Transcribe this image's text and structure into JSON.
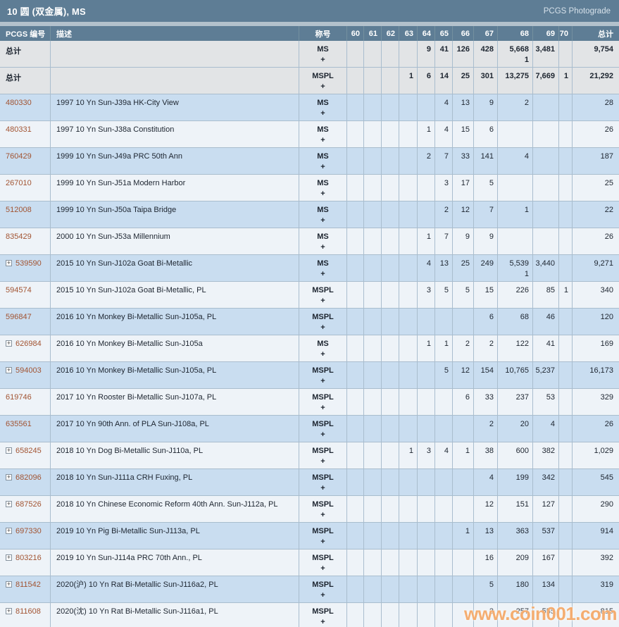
{
  "title_bar": {
    "title": "10 圆 (双金属), MS",
    "photograde_link": "PCGS Photograde"
  },
  "table": {
    "columns": [
      "PCGS 编号",
      "描述",
      "称号",
      "60",
      "61",
      "62",
      "63",
      "64",
      "65",
      "66",
      "67",
      "68",
      "69",
      "70",
      "总计"
    ],
    "grade_labels": [
      "60",
      "61",
      "62",
      "63",
      "64",
      "65",
      "66",
      "67",
      "68",
      "69",
      "70"
    ],
    "rows": [
      {
        "kind": "total",
        "id": "总计",
        "expand": false,
        "desc": "",
        "designation": "MS",
        "plus": "+",
        "counts": [
          "",
          "",
          "",
          "",
          "9",
          "41",
          "126",
          "428",
          "5,668",
          "3,481",
          ""
        ],
        "plus_counts": [
          "",
          "",
          "",
          "",
          "",
          "",
          "",
          "",
          "1",
          "",
          ""
        ],
        "total": "9,754"
      },
      {
        "kind": "total",
        "id": "总计",
        "expand": false,
        "desc": "",
        "designation": "MSPL",
        "plus": "+",
        "counts": [
          "",
          "",
          "",
          "1",
          "6",
          "14",
          "25",
          "301",
          "13,275",
          "7,669",
          "1"
        ],
        "plus_counts": [
          "",
          "",
          "",
          "",
          "",
          "",
          "",
          "",
          "",
          "",
          ""
        ],
        "total": "21,292"
      },
      {
        "kind": "coin",
        "id": "480330",
        "expand": false,
        "desc": "1997 10 Yn Sun-J39a HK-City View",
        "designation": "MS",
        "plus": "+",
        "counts": [
          "",
          "",
          "",
          "",
          "",
          "4",
          "13",
          "9",
          "2",
          "",
          ""
        ],
        "plus_counts": [
          "",
          "",
          "",
          "",
          "",
          "",
          "",
          "",
          "",
          "",
          ""
        ],
        "total": "28"
      },
      {
        "kind": "coin",
        "id": "480331",
        "expand": false,
        "desc": "1997 10 Yn Sun-J38a Constitution",
        "designation": "MS",
        "plus": "+",
        "counts": [
          "",
          "",
          "",
          "",
          "1",
          "4",
          "15",
          "6",
          "",
          "",
          ""
        ],
        "plus_counts": [
          "",
          "",
          "",
          "",
          "",
          "",
          "",
          "",
          "",
          "",
          ""
        ],
        "total": "26"
      },
      {
        "kind": "coin",
        "id": "760429",
        "expand": false,
        "desc": "1999 10 Yn Sun-J49a PRC 50th Ann",
        "designation": "MS",
        "plus": "+",
        "counts": [
          "",
          "",
          "",
          "",
          "2",
          "7",
          "33",
          "141",
          "4",
          "",
          ""
        ],
        "plus_counts": [
          "",
          "",
          "",
          "",
          "",
          "",
          "",
          "",
          "",
          "",
          ""
        ],
        "total": "187"
      },
      {
        "kind": "coin",
        "id": "267010",
        "expand": false,
        "desc": "1999 10 Yn Sun-J51a Modern Harbor",
        "designation": "MS",
        "plus": "+",
        "counts": [
          "",
          "",
          "",
          "",
          "",
          "3",
          "17",
          "5",
          "",
          "",
          ""
        ],
        "plus_counts": [
          "",
          "",
          "",
          "",
          "",
          "",
          "",
          "",
          "",
          "",
          ""
        ],
        "total": "25"
      },
      {
        "kind": "coin",
        "id": "512008",
        "expand": false,
        "desc": "1999 10 Yn Sun-J50a Taipa Bridge",
        "designation": "MS",
        "plus": "+",
        "counts": [
          "",
          "",
          "",
          "",
          "",
          "2",
          "12",
          "7",
          "1",
          "",
          ""
        ],
        "plus_counts": [
          "",
          "",
          "",
          "",
          "",
          "",
          "",
          "",
          "",
          "",
          ""
        ],
        "total": "22"
      },
      {
        "kind": "coin",
        "id": "835429",
        "expand": false,
        "desc": "2000 10 Yn Sun-J53a Millennium",
        "designation": "MS",
        "plus": "+",
        "counts": [
          "",
          "",
          "",
          "",
          "1",
          "7",
          "9",
          "9",
          "",
          "",
          ""
        ],
        "plus_counts": [
          "",
          "",
          "",
          "",
          "",
          "",
          "",
          "",
          "",
          "",
          ""
        ],
        "total": "26"
      },
      {
        "kind": "coin",
        "id": "539590",
        "expand": true,
        "desc": "2015 10 Yn Sun-J102a Goat Bi-Metallic",
        "designation": "MS",
        "plus": "+",
        "counts": [
          "",
          "",
          "",
          "",
          "4",
          "13",
          "25",
          "249",
          "5,539",
          "3,440",
          ""
        ],
        "plus_counts": [
          "",
          "",
          "",
          "",
          "",
          "",
          "",
          "",
          "1",
          "",
          ""
        ],
        "total": "9,271"
      },
      {
        "kind": "coin",
        "id": "594574",
        "expand": false,
        "desc": "2015 10 Yn Sun-J102a Goat Bi-Metallic, PL",
        "designation": "MSPL",
        "plus": "+",
        "counts": [
          "",
          "",
          "",
          "",
          "3",
          "5",
          "5",
          "15",
          "226",
          "85",
          "1"
        ],
        "plus_counts": [
          "",
          "",
          "",
          "",
          "",
          "",
          "",
          "",
          "",
          "",
          ""
        ],
        "total": "340"
      },
      {
        "kind": "coin",
        "id": "596847",
        "expand": false,
        "desc": "2016 10 Yn Monkey Bi-Metallic Sun-J105a, PL",
        "designation": "MSPL",
        "plus": "+",
        "counts": [
          "",
          "",
          "",
          "",
          "",
          "",
          "",
          "6",
          "68",
          "46",
          ""
        ],
        "plus_counts": [
          "",
          "",
          "",
          "",
          "",
          "",
          "",
          "",
          "",
          "",
          ""
        ],
        "total": "120"
      },
      {
        "kind": "coin",
        "id": "626984",
        "expand": true,
        "desc": "2016 10 Yn Monkey Bi-Metallic Sun-J105a",
        "designation": "MS",
        "plus": "+",
        "counts": [
          "",
          "",
          "",
          "",
          "1",
          "1",
          "2",
          "2",
          "122",
          "41",
          ""
        ],
        "plus_counts": [
          "",
          "",
          "",
          "",
          "",
          "",
          "",
          "",
          "",
          "",
          ""
        ],
        "total": "169"
      },
      {
        "kind": "coin",
        "id": "594003",
        "expand": true,
        "desc": "2016 10 Yn Monkey Bi-Metallic Sun-J105a, PL",
        "designation": "MSPL",
        "plus": "+",
        "counts": [
          "",
          "",
          "",
          "",
          "",
          "5",
          "12",
          "154",
          "10,765",
          "5,237",
          ""
        ],
        "plus_counts": [
          "",
          "",
          "",
          "",
          "",
          "",
          "",
          "",
          "",
          "",
          ""
        ],
        "total": "16,173"
      },
      {
        "kind": "coin",
        "id": "619746",
        "expand": false,
        "desc": "2017 10 Yn Rooster Bi-Metallic Sun-J107a, PL",
        "designation": "MSPL",
        "plus": "+",
        "counts": [
          "",
          "",
          "",
          "",
          "",
          "",
          "6",
          "33",
          "237",
          "53",
          ""
        ],
        "plus_counts": [
          "",
          "",
          "",
          "",
          "",
          "",
          "",
          "",
          "",
          "",
          ""
        ],
        "total": "329"
      },
      {
        "kind": "coin",
        "id": "635561",
        "expand": false,
        "desc": "2017 10 Yn 90th Ann. of PLA Sun-J108a, PL",
        "designation": "MSPL",
        "plus": "+",
        "counts": [
          "",
          "",
          "",
          "",
          "",
          "",
          "",
          "2",
          "20",
          "4",
          ""
        ],
        "plus_counts": [
          "",
          "",
          "",
          "",
          "",
          "",
          "",
          "",
          "",
          "",
          ""
        ],
        "total": "26"
      },
      {
        "kind": "coin",
        "id": "658245",
        "expand": true,
        "desc": "2018 10 Yn Dog Bi-Metallic Sun-J110a, PL",
        "designation": "MSPL",
        "plus": "+",
        "counts": [
          "",
          "",
          "",
          "1",
          "3",
          "4",
          "1",
          "38",
          "600",
          "382",
          ""
        ],
        "plus_counts": [
          "",
          "",
          "",
          "",
          "",
          "",
          "",
          "",
          "",
          "",
          ""
        ],
        "total": "1,029"
      },
      {
        "kind": "coin",
        "id": "682096",
        "expand": true,
        "desc": "2018 10 Yn Sun-J111a CRH Fuxing, PL",
        "designation": "MSPL",
        "plus": "+",
        "counts": [
          "",
          "",
          "",
          "",
          "",
          "",
          "",
          "4",
          "199",
          "342",
          ""
        ],
        "plus_counts": [
          "",
          "",
          "",
          "",
          "",
          "",
          "",
          "",
          "",
          "",
          ""
        ],
        "total": "545"
      },
      {
        "kind": "coin",
        "id": "687526",
        "expand": true,
        "desc": "2018 10 Yn Chinese Economic Reform 40th Ann. Sun-J112a, PL",
        "designation": "MSPL",
        "plus": "+",
        "counts": [
          "",
          "",
          "",
          "",
          "",
          "",
          "",
          "12",
          "151",
          "127",
          ""
        ],
        "plus_counts": [
          "",
          "",
          "",
          "",
          "",
          "",
          "",
          "",
          "",
          "",
          ""
        ],
        "total": "290"
      },
      {
        "kind": "coin",
        "id": "697330",
        "expand": true,
        "desc": "2019 10 Yn Pig Bi-Metallic Sun-J113a, PL",
        "designation": "MSPL",
        "plus": "+",
        "counts": [
          "",
          "",
          "",
          "",
          "",
          "",
          "1",
          "13",
          "363",
          "537",
          ""
        ],
        "plus_counts": [
          "",
          "",
          "",
          "",
          "",
          "",
          "",
          "",
          "",
          "",
          ""
        ],
        "total": "914"
      },
      {
        "kind": "coin",
        "id": "803216",
        "expand": true,
        "desc": "2019 10 Yn Sun-J114a PRC 70th Ann., PL",
        "designation": "MSPL",
        "plus": "+",
        "counts": [
          "",
          "",
          "",
          "",
          "",
          "",
          "",
          "16",
          "209",
          "167",
          ""
        ],
        "plus_counts": [
          "",
          "",
          "",
          "",
          "",
          "",
          "",
          "",
          "",
          "",
          ""
        ],
        "total": "392"
      },
      {
        "kind": "coin",
        "id": "811542",
        "expand": true,
        "desc": "2020(沪) 10 Yn Rat Bi-Metallic Sun-J116a2, PL",
        "designation": "MSPL",
        "plus": "+",
        "counts": [
          "",
          "",
          "",
          "",
          "",
          "",
          "",
          "5",
          "180",
          "134",
          ""
        ],
        "plus_counts": [
          "",
          "",
          "",
          "",
          "",
          "",
          "",
          "",
          "",
          "",
          ""
        ],
        "total": "319"
      },
      {
        "kind": "coin",
        "id": "811608",
        "expand": true,
        "desc": "2020(沈) 10 Yn Rat Bi-Metallic Sun-J116a1, PL",
        "designation": "MSPL",
        "plus": "+",
        "counts": [
          "",
          "",
          "",
          "",
          "",
          "",
          "",
          "3",
          "257",
          "555",
          ""
        ],
        "plus_counts": [
          "",
          "",
          "",
          "",
          "",
          "",
          "",
          "",
          "",
          "",
          ""
        ],
        "total": "815"
      }
    ]
  },
  "watermark": "www.coin001.com",
  "colors": {
    "header_bg": "#5e7d95",
    "row_blue": "#c9ddf0",
    "row_white": "#eef3f8",
    "row_total": "#e2e4e6",
    "grid_line": "#a9bdce",
    "link": "#a25432",
    "watermark": "#f2a05a"
  }
}
